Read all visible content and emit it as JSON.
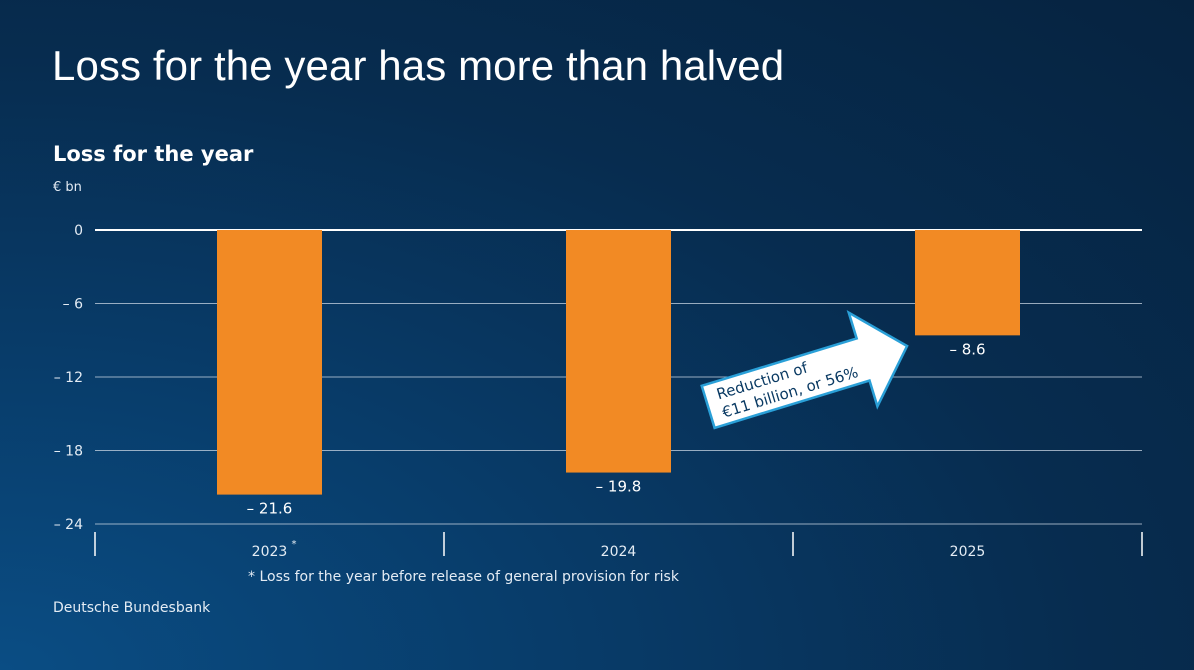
{
  "title": "Loss for the year has more than halved",
  "subtitle": "Loss for the year",
  "unit": "€ bn",
  "footnote": "* Loss for the year before release of general provision for risk",
  "source": "Deutsche Bundesbank",
  "annotation": {
    "line1": "Reduction of",
    "line2": "€11 billion, or 56%"
  },
  "colors": {
    "bar": "#f28a24",
    "arrow_stroke": "#2aa0d8",
    "arrow_fill": "#ffffff",
    "arrow_text": "#0a3a63"
  },
  "chart_data": {
    "type": "bar",
    "title": "Loss for the year",
    "ylabel": "€ bn",
    "xlabel": "",
    "categories": [
      "2023",
      "2024",
      "2025"
    ],
    "category_marks": [
      "*",
      "",
      ""
    ],
    "values": [
      -21.6,
      -19.8,
      -8.6
    ],
    "value_labels": [
      "– 21.6",
      "– 19.8",
      "– 8.6"
    ],
    "ylim": [
      -24,
      0
    ],
    "yticks": [
      0,
      -6,
      -12,
      -18,
      -24
    ],
    "ytick_labels": [
      "0",
      "–  6",
      "– 12",
      "– 18",
      "– 24"
    ],
    "grid": true
  }
}
